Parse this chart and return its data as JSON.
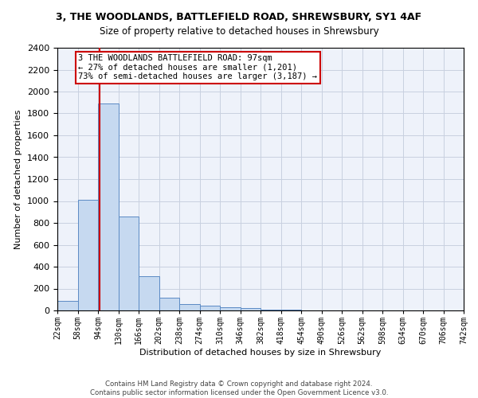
{
  "title": "3, THE WOODLANDS, BATTLEFIELD ROAD, SHREWSBURY, SY1 4AF",
  "subtitle": "Size of property relative to detached houses in Shrewsbury",
  "xlabel": "Distribution of detached houses by size in Shrewsbury",
  "ylabel": "Number of detached properties",
  "footer1": "Contains HM Land Registry data © Crown copyright and database right 2024.",
  "footer2": "Contains public sector information licensed under the Open Government Licence v3.0.",
  "bin_edges": [
    22,
    58,
    94,
    130,
    166,
    202,
    238,
    274,
    310,
    346,
    382,
    418,
    454,
    490,
    526,
    562,
    598,
    634,
    670,
    706,
    742
  ],
  "bar_heights": [
    90,
    1010,
    1890,
    860,
    310,
    115,
    55,
    45,
    30,
    20,
    10,
    5,
    3,
    2,
    2,
    1,
    1,
    1,
    1,
    0
  ],
  "bar_color": "#c6d9f0",
  "bar_edge_color": "#5b8ac4",
  "property_size": 97,
  "property_line_color": "#cc0000",
  "annotation_line1": "3 THE WOODLANDS BATTLEFIELD ROAD: 97sqm",
  "annotation_line2": "← 27% of detached houses are smaller (1,201)",
  "annotation_line3": "73% of semi-detached houses are larger (3,187) →",
  "annotation_box_color": "#cc0000",
  "ylim": [
    0,
    2400
  ],
  "yticks": [
    0,
    200,
    400,
    600,
    800,
    1000,
    1200,
    1400,
    1600,
    1800,
    2000,
    2200,
    2400
  ],
  "grid_color": "#c8d0e0",
  "bg_color": "#eef2fa",
  "title_fontsize": 9,
  "subtitle_fontsize": 8.5,
  "ylabel_fontsize": 8,
  "xlabel_fontsize": 8,
  "ytick_fontsize": 8,
  "xtick_fontsize": 7
}
